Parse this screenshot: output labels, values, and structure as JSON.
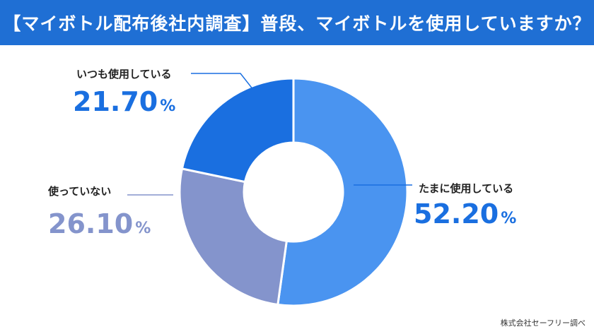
{
  "chart_data": {
    "type": "pie",
    "title": "【マイボトル配布後社内調査】普段、マイボトルを使用していますか？",
    "categories": [
      "たまに使用している",
      "使っていない",
      "いつも使用している"
    ],
    "values": [
      52.2,
      26.1,
      21.7
    ],
    "value_labels": [
      "52.20",
      "26.10",
      "21.70"
    ],
    "unit": "%",
    "colors": [
      "#4a94f0",
      "#8494cc",
      "#1a6fe0"
    ],
    "label_colors": [
      "#1a6fe0",
      "#8494cc",
      "#1a6fe0"
    ],
    "donut": true,
    "start": "12 o'clock, clockwise"
  },
  "source": "株式会社セーフリー調べ"
}
